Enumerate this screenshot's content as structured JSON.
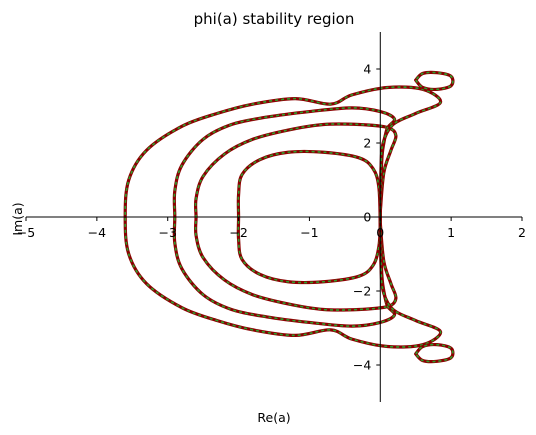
{
  "chart_data": {
    "type": "line",
    "title": "phi(a) stability region",
    "xlabel": "Re(a)",
    "ylabel": "Im(a)",
    "xlim": [
      -5,
      2
    ],
    "ylim": [
      -5,
      5
    ],
    "aspect": "equal",
    "spines": "centered through origin",
    "grid": false,
    "legend": "none",
    "line_colors": {
      "outer": "#8b0000",
      "inner_dash": "#2ca02c"
    },
    "x_ticks": [
      {
        "value": -5,
        "label": "−5"
      },
      {
        "value": -4,
        "label": "−4"
      },
      {
        "value": -3,
        "label": "−3"
      },
      {
        "value": -2,
        "label": "−2"
      },
      {
        "value": -1,
        "label": "−1"
      },
      {
        "value": 0,
        "label": "0"
      },
      {
        "value": 1,
        "label": "1"
      },
      {
        "value": 2,
        "label": "2"
      }
    ],
    "y_ticks": [
      {
        "value": 4,
        "label": "4"
      },
      {
        "value": 2,
        "label": "2"
      },
      {
        "value": 0,
        "label": "0"
      },
      {
        "value": -2,
        "label": "−2"
      },
      {
        "value": -4,
        "label": "−4"
      }
    ],
    "series": [
      {
        "points": [
          [
            0,
            -0.2
          ],
          [
            -0.02,
            0.8
          ],
          [
            -0.1,
            1.3
          ],
          [
            -0.3,
            1.6
          ],
          [
            -0.8,
            1.75
          ],
          [
            -1.3,
            1.75
          ],
          [
            -1.7,
            1.55
          ],
          [
            -1.95,
            1.15
          ],
          [
            -2.0,
            0.6
          ],
          [
            -2.0,
            0
          ],
          [
            -2.0,
            -0.6
          ],
          [
            -1.95,
            -1.15
          ],
          [
            -1.7,
            -1.55
          ],
          [
            -1.3,
            -1.75
          ],
          [
            -0.8,
            -1.75
          ],
          [
            -0.3,
            -1.6
          ],
          [
            -0.1,
            -1.3
          ],
          [
            -0.02,
            -0.8
          ],
          [
            0,
            -0.2
          ],
          [
            0,
            0.2
          ]
        ]
      },
      {
        "points": [
          [
            0,
            0.15
          ],
          [
            0.05,
            1.2
          ],
          [
            0.15,
            1.8
          ],
          [
            0.22,
            2.2
          ],
          [
            0.1,
            2.42
          ],
          [
            -0.3,
            2.5
          ],
          [
            -0.8,
            2.5
          ],
          [
            -1.3,
            2.35
          ],
          [
            -1.8,
            2.1
          ],
          [
            -2.2,
            1.7
          ],
          [
            -2.5,
            1.1
          ],
          [
            -2.6,
            0.5
          ],
          [
            -2.6,
            0
          ],
          [
            -2.6,
            -0.5
          ],
          [
            -2.5,
            -1.1
          ],
          [
            -2.2,
            -1.7
          ],
          [
            -1.8,
            -2.1
          ],
          [
            -1.3,
            -2.35
          ],
          [
            -0.8,
            -2.5
          ],
          [
            -0.3,
            -2.5
          ],
          [
            0.1,
            -2.42
          ],
          [
            0.22,
            -2.2
          ],
          [
            0.15,
            -1.8
          ],
          [
            0.05,
            -1.2
          ],
          [
            0,
            -0.15
          ],
          [
            0,
            0.15
          ]
        ]
      },
      {
        "points": [
          [
            0,
            0.1
          ],
          [
            0.02,
            1.5
          ],
          [
            0.05,
            2.0
          ],
          [
            0.1,
            2.4
          ],
          [
            0.2,
            2.65
          ],
          [
            0.0,
            2.85
          ],
          [
            -0.4,
            2.95
          ],
          [
            -1.0,
            2.85
          ],
          [
            -1.6,
            2.7
          ],
          [
            -2.1,
            2.5
          ],
          [
            -2.5,
            2.1
          ],
          [
            -2.8,
            1.4
          ],
          [
            -2.9,
            0.7
          ],
          [
            -2.9,
            0
          ],
          [
            -2.9,
            -0.7
          ],
          [
            -2.8,
            -1.4
          ],
          [
            -2.5,
            -2.1
          ],
          [
            -2.1,
            -2.5
          ],
          [
            -1.6,
            -2.7
          ],
          [
            -1.0,
            -2.85
          ],
          [
            -0.4,
            -2.95
          ],
          [
            0.0,
            -2.85
          ],
          [
            0.2,
            -2.65
          ],
          [
            0.1,
            -2.4
          ],
          [
            0.05,
            -2.0
          ],
          [
            0.02,
            -1.5
          ],
          [
            0,
            -0.1
          ],
          [
            0,
            0.1
          ]
        ]
      },
      {
        "points": [
          [
            0,
            0.05
          ],
          [
            0.01,
            1.3
          ],
          [
            0.04,
            2.0
          ],
          [
            0.18,
            2.5
          ],
          [
            0.5,
            2.8
          ],
          [
            0.85,
            3.1
          ],
          [
            0.6,
            3.45
          ],
          [
            0.1,
            3.5
          ],
          [
            -0.4,
            3.3
          ],
          [
            -0.7,
            3.05
          ],
          [
            -1.2,
            3.2
          ],
          [
            -1.8,
            3.05
          ],
          [
            -2.3,
            2.8
          ],
          [
            -2.8,
            2.45
          ],
          [
            -3.3,
            1.8
          ],
          [
            -3.55,
            1.0
          ],
          [
            -3.6,
            0
          ],
          [
            -3.55,
            -1.0
          ],
          [
            -3.3,
            -1.8
          ],
          [
            -2.8,
            -2.45
          ],
          [
            -2.3,
            -2.8
          ],
          [
            -1.8,
            -3.05
          ],
          [
            -1.2,
            -3.2
          ],
          [
            -0.7,
            -3.05
          ],
          [
            -0.4,
            -3.3
          ],
          [
            0.1,
            -3.5
          ],
          [
            0.6,
            -3.45
          ],
          [
            0.85,
            -3.1
          ],
          [
            0.5,
            -2.8
          ],
          [
            0.18,
            -2.5
          ],
          [
            0.04,
            -2.0
          ],
          [
            0.01,
            -1.3
          ],
          [
            0,
            -0.05
          ],
          [
            0,
            0.05
          ]
        ]
      },
      {
        "points": [
          [
            0.5,
            3.7
          ],
          [
            0.6,
            3.5
          ],
          [
            0.8,
            3.45
          ],
          [
            1.0,
            3.55
          ],
          [
            1.0,
            3.8
          ],
          [
            0.8,
            3.9
          ],
          [
            0.6,
            3.88
          ],
          [
            0.5,
            3.7
          ]
        ]
      },
      {
        "points": [
          [
            0.5,
            -3.7
          ],
          [
            0.6,
            -3.5
          ],
          [
            0.8,
            -3.45
          ],
          [
            1.0,
            -3.55
          ],
          [
            1.0,
            -3.8
          ],
          [
            0.8,
            -3.9
          ],
          [
            0.6,
            -3.88
          ],
          [
            0.5,
            -3.7
          ]
        ]
      }
    ]
  }
}
